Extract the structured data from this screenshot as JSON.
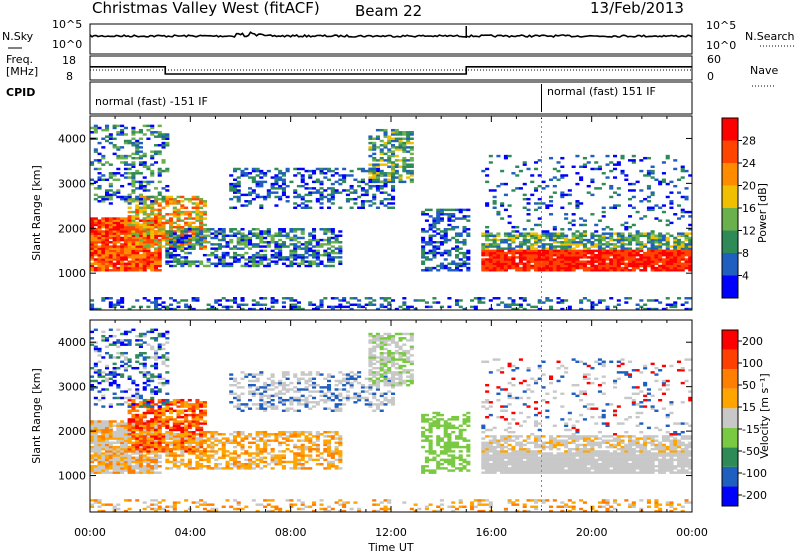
{
  "header": {
    "station": "Christmas Valley West (fitACF)",
    "beam": "Beam 22",
    "date": "13/Feb/2013"
  },
  "summary": {
    "nsky_label": "N.Sky",
    "nsky_ticks": [
      "10^5",
      "10^0"
    ],
    "nsearch_label": "N.Search",
    "nsearch_ticks": [
      "10^5",
      "10^0"
    ],
    "freq_label": "Freq.",
    "freq_unit": "[MHz]",
    "freq_ticks": [
      "18",
      "8"
    ],
    "nave_label": "Nave",
    "nave_ticks": [
      "60",
      "0"
    ],
    "cpid_label": "CPID",
    "cpid_segments": [
      {
        "label": "normal (fast) -151 IF",
        "start_h": 0,
        "end_h": 18
      },
      {
        "label": "normal (fast) 151 IF",
        "start_h": 18,
        "end_h": 24
      }
    ],
    "freq_steps": [
      {
        "start_h": 0,
        "end_h": 3,
        "freq": 13.5
      },
      {
        "start_h": 3,
        "end_h": 15,
        "freq": 10.5
      },
      {
        "start_h": 15,
        "end_h": 24,
        "freq": 13.5
      }
    ]
  },
  "chart_data": [
    {
      "type": "heatmap",
      "name": "power",
      "x_range_h": [
        0,
        24
      ],
      "y_range_km": [
        180,
        4500
      ],
      "ylabel": "Slant Range [km]",
      "yticks": [
        "1000",
        "2000",
        "3000",
        "4000"
      ],
      "xticks": [
        "00:00",
        "04:00",
        "08:00",
        "12:00",
        "16:00",
        "20:00",
        "00:00"
      ],
      "colorbar_label": "Power [dB]",
      "colorbar_ticks": [
        "4",
        "8",
        "12",
        "16",
        "20",
        "24",
        "28"
      ],
      "colors": [
        "#0000ff",
        "#1f5fbf",
        "#2e8b57",
        "#6ab04c",
        "#f0c000",
        "#ff8c00",
        "#ff4500",
        "#ff0000"
      ]
    },
    {
      "type": "heatmap",
      "name": "velocity",
      "x_range_h": [
        0,
        24
      ],
      "y_range_km": [
        180,
        4500
      ],
      "ylabel": "Slant Range [km]",
      "yticks": [
        "1000",
        "2000",
        "3000",
        "4000"
      ],
      "xticks": [
        "00:00",
        "04:00",
        "08:00",
        "12:00",
        "16:00",
        "20:00",
        "00:00"
      ],
      "xlabel": "Time UT",
      "colorbar_label": "Velocity [m s⁻¹]",
      "colorbar_ticks": [
        "200",
        "100",
        "50",
        "15",
        "-15",
        "-50",
        "-100",
        "-200"
      ],
      "colors": [
        "#0000ff",
        "#1f5fbf",
        "#2e8b57",
        "#7ac943",
        "#c8c8c8",
        "#ffa500",
        "#ff7f00",
        "#ff4000",
        "#ff0000"
      ]
    }
  ]
}
